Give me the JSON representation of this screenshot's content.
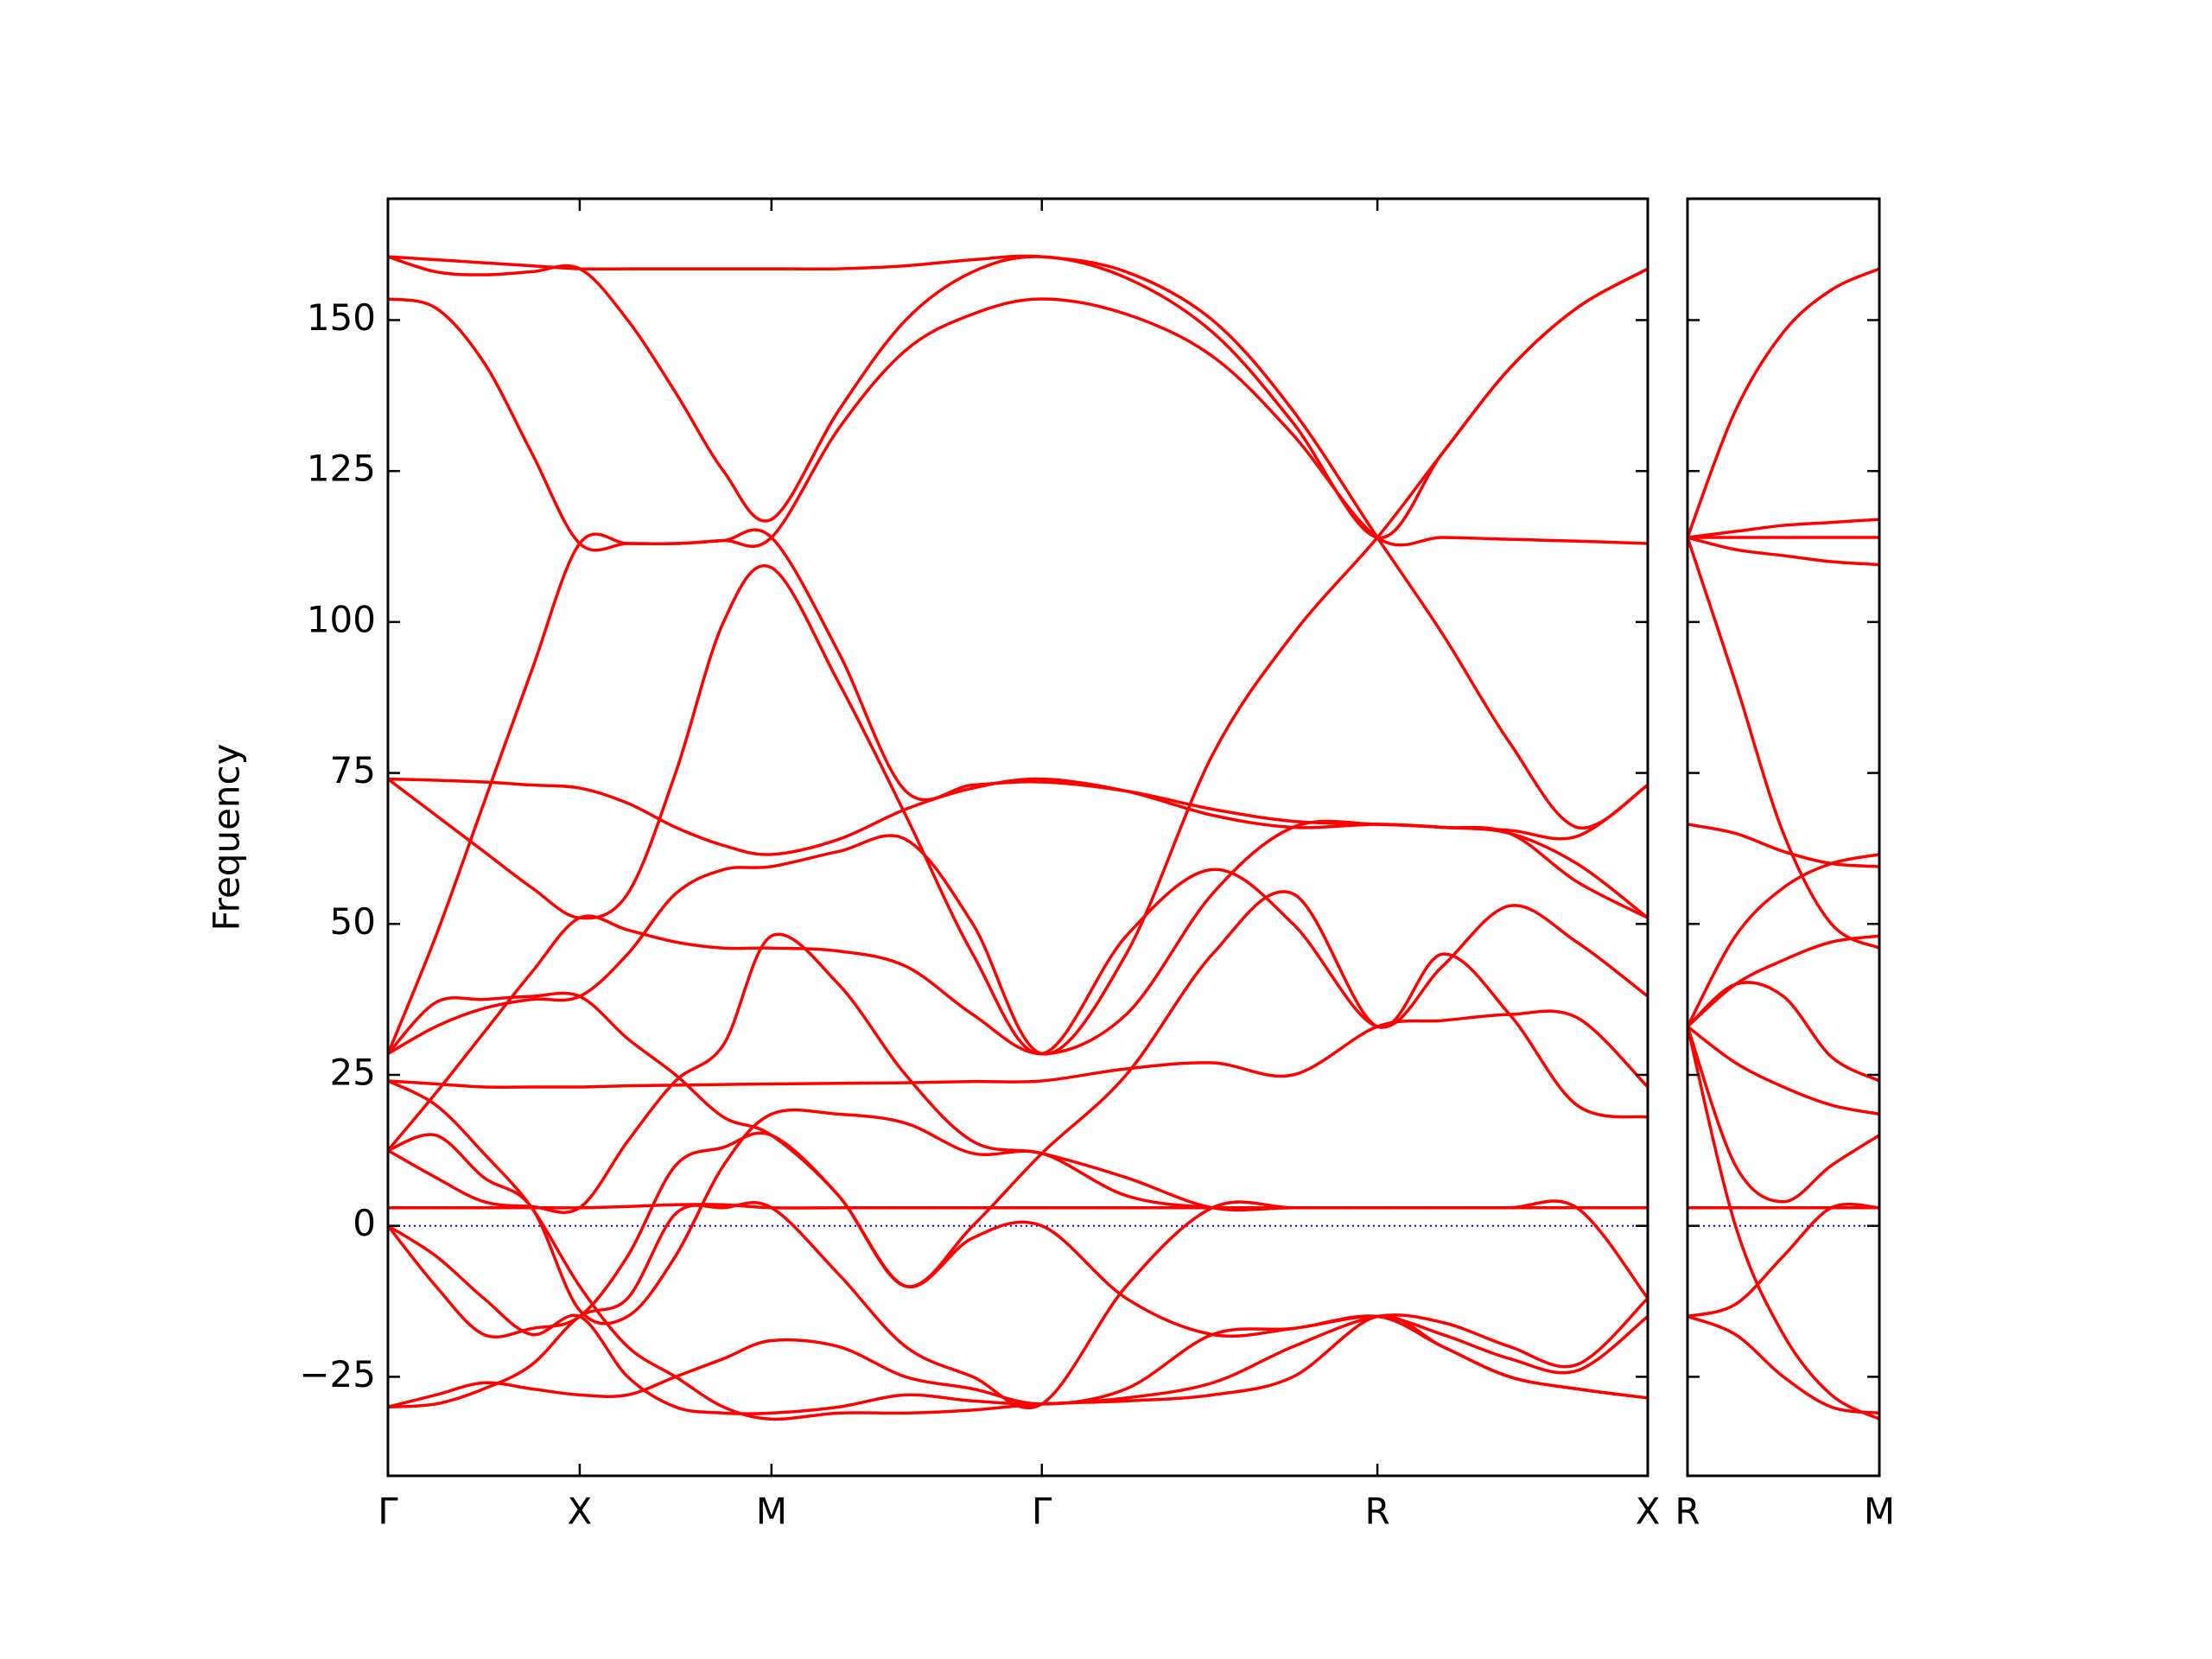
{
  "chart_data": [
    {
      "type": "line",
      "ylabel": "Frequency",
      "color": "#ff0000",
      "x": [
        0,
        0.25,
        0.5,
        0.75,
        1,
        1.25,
        1.5,
        1.75,
        2,
        2.35,
        2.7,
        3.05,
        3.41,
        3.85,
        4.3,
        4.72,
        5.16,
        5.5,
        5.85,
        6.2,
        6.57
      ],
      "xlim": [
        0,
        6.57
      ],
      "xticks": [
        {
          "value": 0,
          "label": "Γ"
        },
        {
          "value": 1,
          "label": "X"
        },
        {
          "value": 2,
          "label": "M"
        },
        {
          "value": 3.41,
          "label": "Γ"
        },
        {
          "value": 5.16,
          "label": "R"
        },
        {
          "value": 6.57,
          "label": "X"
        }
      ],
      "ylim": [
        -41.4,
        170.1
      ],
      "yticks": [
        {
          "value": -25,
          "label": "−25"
        },
        0,
        25,
        50,
        75,
        100,
        125,
        150
      ],
      "hline": {
        "value": 0,
        "color": "#0000ff"
      },
      "series": [
        {
          "values": [
            160.5,
            160,
            159.5,
            159,
            158.5,
            158.5,
            158.5,
            158.5,
            158.5,
            158.5,
            159,
            160,
            160.5,
            158,
            150,
            135,
            114,
            98,
            80,
            66,
            73
          ]
        },
        {
          "values": [
            160.5,
            158,
            157.5,
            158,
            158.5,
            150,
            138,
            125,
            117,
            135,
            150,
            158,
            160.5,
            157,
            148,
            133,
            114,
            128,
            142,
            152,
            158.5
          ]
        },
        {
          "values": [
            153.5,
            152,
            143,
            128,
            113,
            113,
            113,
            113.5,
            114,
            132,
            145,
            151,
            153.5,
            151,
            144,
            131,
            114,
            114,
            113.7,
            113.4,
            113
          ]
        },
        {
          "values": [
            28.5,
            48,
            70,
            92,
            113,
            113,
            113,
            113.5,
            114,
            95,
            72,
            73,
            73.5,
            72,
            69,
            67,
            66.5,
            66,
            65,
            60,
            51
          ]
        },
        {
          "values": [
            74,
            73.8,
            73.5,
            73,
            72.5,
            70,
            66,
            63,
            61.5,
            64,
            69,
            72.5,
            74,
            72,
            68,
            66,
            66.5,
            66,
            65.5,
            64.5,
            73
          ]
        },
        {
          "values": [
            74,
            68,
            62,
            56,
            51,
            55,
            75,
            100,
            109,
            90,
            68,
            45,
            28.5,
            48,
            59,
            50,
            33,
            43,
            53,
            47,
            38
          ]
        },
        {
          "values": [
            28.5,
            33,
            36,
            37.5,
            38,
            45,
            55,
            59,
            59.5,
            62,
            64,
            50,
            28.5,
            45,
            78,
            98,
            114,
            128,
            142,
            152,
            158.5
          ]
        },
        {
          "values": [
            24,
            23.5,
            23,
            23,
            23,
            23.2,
            23.3,
            23.4,
            23.5,
            23.6,
            23.7,
            23.9,
            24,
            26,
            27,
            25,
            33,
            34,
            35,
            34.5,
            23
          ]
        },
        {
          "values": [
            12.5,
            22,
            32,
            42,
            51,
            49,
            47,
            46,
            46,
            45.5,
            43,
            35,
            28.5,
            35,
            55,
            66,
            66.5,
            66,
            65,
            57,
            51
          ]
        },
        {
          "values": [
            12.5,
            8,
            4,
            3.2,
            3,
            14,
            24,
            30,
            48,
            40,
            25,
            14,
            12,
            8,
            3,
            3,
            3,
            3,
            3,
            3,
            3
          ]
        },
        {
          "values": [
            3,
            3,
            3,
            3,
            3,
            3.2,
            3.5,
            3.5,
            3,
            3,
            3,
            3,
            3,
            3,
            3,
            3,
            3,
            3,
            3,
            3,
            3
          ]
        },
        {
          "values": [
            0,
            -10,
            -18,
            -17,
            -15,
            -5,
            10,
            13,
            15,
            5,
            -10,
            -2,
            0,
            -12,
            -18,
            -17,
            -15,
            -18,
            -22,
            -24,
            -15
          ]
        },
        {
          "values": [
            0,
            -5,
            -12,
            -18,
            -15,
            -25,
            -30,
            -31,
            -31,
            -30,
            -28,
            -29,
            -29.5,
            -28.5,
            -26,
            -20,
            -15,
            -16,
            -20,
            -23,
            -12
          ]
        },
        {
          "values": [
            -30,
            -28,
            -26,
            -27,
            -28,
            -28,
            -25,
            -22,
            -19,
            -20,
            -25,
            -27,
            -29.5,
            -27,
            -18,
            -17,
            -15,
            -20,
            -25,
            -27,
            -28.5
          ]
        },
        {
          "values": [
            -30,
            -29.5,
            -27,
            -23,
            -15,
            -12,
            2,
            3,
            3,
            -8,
            -20,
            -25,
            -29.5,
            -10,
            3,
            3,
            3,
            3,
            3,
            3,
            3
          ]
        },
        {
          "values": [
            24,
            20,
            12,
            3,
            -10,
            -20,
            -25,
            -30,
            -32,
            -31,
            -31,
            -30.5,
            -29.5,
            -29,
            -28,
            -25,
            -15,
            -20,
            -25,
            -27,
            -28.5
          ]
        },
        {
          "values": [
            12.5,
            15,
            8,
            3,
            -14,
            -15,
            -5,
            10,
            18.5,
            18.5,
            17,
            12,
            12,
            5,
            3,
            3,
            3,
            3,
            3,
            3,
            -12
          ]
        },
        {
          "values": [
            28.5,
            37,
            37.5,
            38,
            38,
            31,
            25,
            18,
            15,
            5,
            -10,
            0,
            12,
            25,
            45,
            55,
            33,
            45,
            35,
            20,
            18
          ]
        }
      ]
    },
    {
      "type": "line",
      "color": "#ff0000",
      "tick_labels": false,
      "x": [
        0,
        0.25,
        0.5,
        0.75,
        1
      ],
      "xlim": [
        0,
        1
      ],
      "xticks": [
        {
          "value": 0,
          "label": "R"
        },
        {
          "value": 1,
          "label": "M"
        }
      ],
      "ylim": [
        -41.4,
        170.1
      ],
      "yticks": [
        -25,
        0,
        25,
        50,
        75,
        100,
        125,
        150
      ],
      "hline": {
        "value": 0,
        "color": "#0000ff"
      },
      "series": [
        {
          "values": [
            114,
            135,
            148,
            155,
            158.5
          ]
        },
        {
          "values": [
            114,
            115,
            116,
            116.5,
            117
          ]
        },
        {
          "values": [
            114,
            114,
            114,
            114,
            114
          ]
        },
        {
          "values": [
            114,
            112,
            111,
            110,
            109.5
          ]
        },
        {
          "values": [
            114,
            90,
            65,
            50,
            46
          ]
        },
        {
          "values": [
            66.5,
            65,
            62,
            60,
            59.5
          ]
        },
        {
          "values": [
            33,
            48,
            56,
            60,
            61.5
          ]
        },
        {
          "values": [
            33,
            40,
            44,
            47,
            48
          ]
        },
        {
          "values": [
            33,
            40,
            38,
            28,
            24
          ]
        },
        {
          "values": [
            33,
            27,
            23,
            20,
            18.5
          ]
        },
        {
          "values": [
            33,
            10,
            4,
            10,
            15
          ]
        },
        {
          "values": [
            3,
            3,
            3,
            3,
            3
          ]
        },
        {
          "values": [
            -15,
            -13,
            -5,
            3,
            3
          ]
        },
        {
          "values": [
            -15,
            -18,
            -25,
            -30,
            -31
          ]
        },
        {
          "values": [
            33,
            0,
            -18,
            -28,
            -32
          ]
        }
      ]
    }
  ]
}
